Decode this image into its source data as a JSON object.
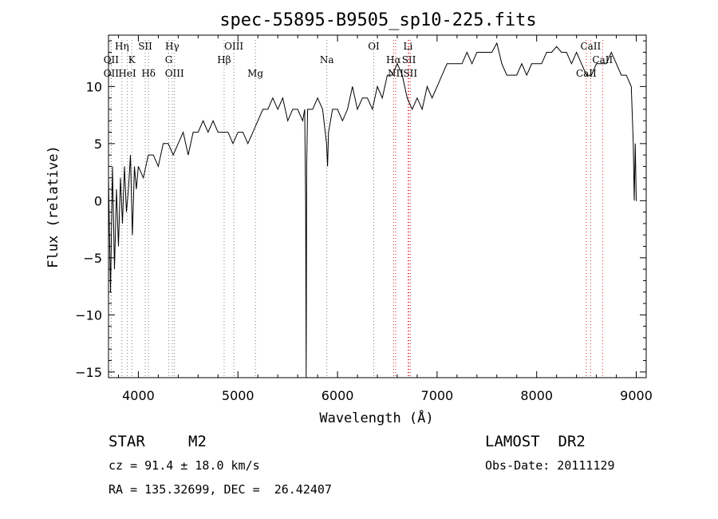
{
  "chart_data": {
    "type": "line",
    "title": "spec-55895-B9505_sp10-225.fits",
    "xlabel": "Wavelength (Å)",
    "ylabel": "Flux (relative)",
    "xlim": [
      3700,
      9100
    ],
    "ylim": [
      -15.5,
      14.5
    ],
    "xticks": [
      4000,
      5000,
      6000,
      7000,
      8000,
      9000
    ],
    "yticks": [
      -15,
      -10,
      -5,
      0,
      5,
      10
    ],
    "ytick_labels": [
      "−15",
      "−10",
      "−5",
      "0",
      "5",
      "10"
    ],
    "grid": false,
    "series": [
      {
        "x": [
          3700,
          3720,
          3740,
          3760,
          3780,
          3800,
          3820,
          3840,
          3860,
          3880,
          3900,
          3920,
          3940,
          3960,
          3980,
          4000,
          4050,
          4100,
          4150,
          4200,
          4250,
          4300,
          4350,
          4400,
          4450,
          4500,
          4550,
          4600,
          4650,
          4700,
          4750,
          4800,
          4850,
          4900,
          4950,
          5000,
          5050,
          5100,
          5150,
          5200,
          5250,
          5300,
          5350,
          5400,
          5450,
          5500,
          5550,
          5600,
          5650,
          5670,
          5680,
          5685,
          5690,
          5700,
          5750,
          5800,
          5850,
          5890,
          5900,
          5910,
          5950,
          6000,
          6050,
          6100,
          6150,
          6200,
          6250,
          6300,
          6350,
          6400,
          6450,
          6500,
          6550,
          6600,
          6650,
          6700,
          6750,
          6800,
          6850,
          6900,
          6950,
          7000,
          7050,
          7100,
          7150,
          7200,
          7250,
          7300,
          7350,
          7400,
          7450,
          7500,
          7550,
          7600,
          7650,
          7700,
          7750,
          7800,
          7850,
          7900,
          7950,
          8000,
          8050,
          8100,
          8150,
          8200,
          8250,
          8300,
          8350,
          8400,
          8450,
          8500,
          8550,
          8600,
          8650,
          8700,
          8750,
          8800,
          8850,
          8900,
          8950,
          8970,
          8980,
          8990,
          9000,
          9005
        ],
        "values": [
          2,
          -8,
          3,
          -6,
          1,
          -4,
          2,
          -2,
          3,
          -1,
          1,
          4,
          -3,
          3,
          1,
          3,
          2,
          4,
          4,
          3,
          5,
          5,
          4,
          5,
          6,
          4,
          6,
          6,
          7,
          6,
          7,
          6,
          6,
          6,
          5,
          6,
          6,
          5,
          6,
          7,
          8,
          8,
          9,
          8,
          9,
          7,
          8,
          8,
          7,
          8,
          0,
          -15.5,
          3,
          8,
          8,
          9,
          8,
          5,
          3,
          6,
          8,
          8,
          7,
          8,
          10,
          8,
          9,
          9,
          8,
          10,
          9,
          11,
          11,
          12,
          11,
          9,
          8,
          9,
          8,
          10,
          9,
          10,
          11,
          12,
          12,
          12,
          12,
          13,
          12,
          13,
          13,
          13,
          13,
          13.8,
          12,
          11,
          11,
          11,
          12,
          11,
          12,
          12,
          12,
          13,
          13,
          13.5,
          13,
          13,
          12,
          13,
          12,
          11,
          11,
          12,
          12,
          12,
          13,
          12,
          11,
          11,
          10,
          5,
          0,
          5,
          0,
          0
        ]
      }
    ],
    "spectral_lines": [
      {
        "label": "Hη",
        "x": 3835,
        "row": 0,
        "color": "#7f7f7f"
      },
      {
        "label": "SII",
        "x": 4069,
        "row": 0,
        "color": "#7f7f7f"
      },
      {
        "label": "Hγ",
        "x": 4340,
        "row": 0,
        "color": "#7f7f7f"
      },
      {
        "label": "OIII",
        "x": 4959,
        "row": 0,
        "color": "#7f7f7f"
      },
      {
        "label": "OI",
        "x": 6364,
        "row": 0,
        "color": "#7f7f7f"
      },
      {
        "label": "Li",
        "x": 6708,
        "row": 0,
        "color": "#d62728"
      },
      {
        "label": "CaII",
        "x": 8542,
        "row": 0,
        "color": "#d62728"
      },
      {
        "label": "OII",
        "x": 3727,
        "row": 1,
        "color": "#7f7f7f"
      },
      {
        "label": "K",
        "x": 3934,
        "row": 1,
        "color": "#7f7f7f"
      },
      {
        "label": "G",
        "x": 4305,
        "row": 1,
        "color": "#7f7f7f"
      },
      {
        "label": "Hβ",
        "x": 4861,
        "row": 1,
        "color": "#7f7f7f"
      },
      {
        "label": "Na",
        "x": 5893,
        "row": 1,
        "color": "#7f7f7f"
      },
      {
        "label": "Hα",
        "x": 6563,
        "row": 1,
        "color": "#d62728"
      },
      {
        "label": "SII",
        "x": 6717,
        "row": 1,
        "color": "#d62728"
      },
      {
        "label": "CaII",
        "x": 8662,
        "row": 1,
        "color": "#d62728"
      },
      {
        "label": "OII",
        "x": 3727,
        "row": 2,
        "color": "#7f7f7f"
      },
      {
        "label": "HeI",
        "x": 3889,
        "row": 2,
        "color": "#7f7f7f"
      },
      {
        "label": "Hδ",
        "x": 4102,
        "row": 2,
        "color": "#7f7f7f"
      },
      {
        "label": "OIII",
        "x": 4363,
        "row": 2,
        "color": "#7f7f7f"
      },
      {
        "label": "Mg",
        "x": 5175,
        "row": 2,
        "color": "#7f7f7f"
      },
      {
        "label": "NII",
        "x": 6584,
        "row": 2,
        "color": "#d62728"
      },
      {
        "label": "SII",
        "x": 6731,
        "row": 2,
        "color": "#d62728"
      },
      {
        "label": "CaII",
        "x": 8498,
        "row": 2,
        "color": "#d62728"
      }
    ]
  },
  "info": {
    "class": "STAR",
    "subclass": "M2",
    "survey": "LAMOST  DR2",
    "cz": "cz = 91.4 ± 18.0 km/s",
    "obsdate": "Obs-Date: 20111129",
    "radec": "RA = 135.32699, DEC =  26.42407"
  }
}
